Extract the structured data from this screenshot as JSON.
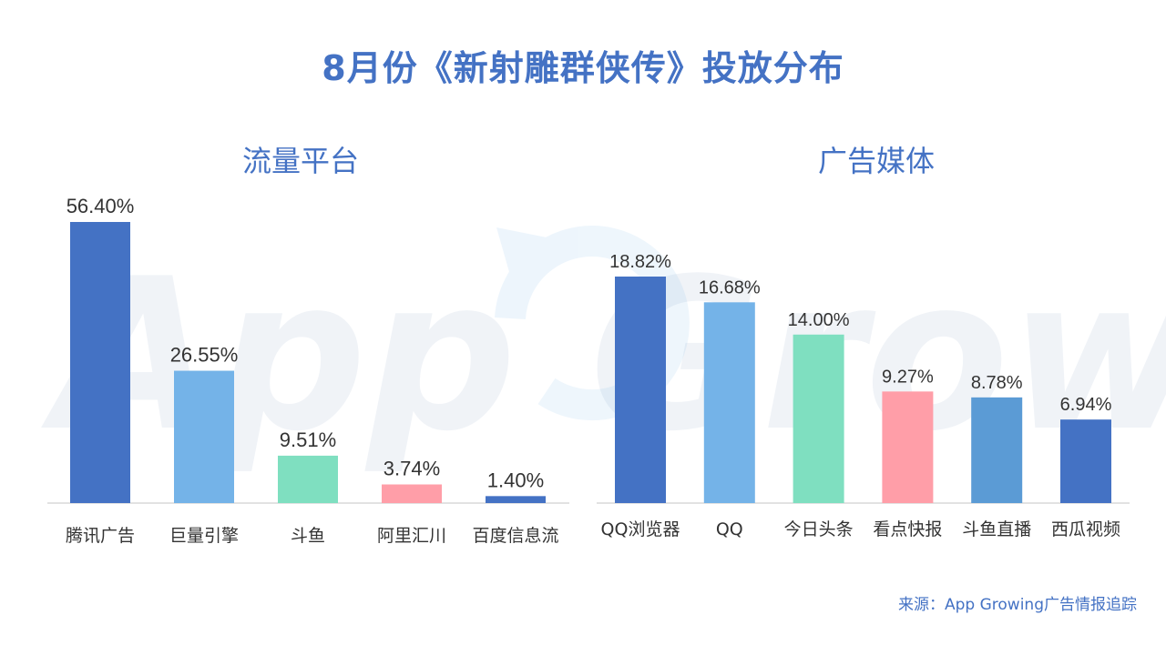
{
  "title": "8月份《新射雕群侠传》投放分布",
  "source": "来源：App Growing广告情报追踪",
  "watermark": "App Growing",
  "colors": {
    "blue_dark": "#4472c4",
    "blue_light": "#74b3e8",
    "mint": "#7fdfc0",
    "pink": "#ff9ea8",
    "blue_mid": "#5b9bd5",
    "axis": "#d9d9d9"
  },
  "chart_data": [
    {
      "type": "bar",
      "title": "流量平台",
      "categories": [
        "腾讯广告",
        "巨量引擎",
        "斗鱼",
        "阿里汇川",
        "百度信息流"
      ],
      "values": [
        56.4,
        26.55,
        9.51,
        3.74,
        1.4
      ],
      "labels": [
        "56.40%",
        "26.55%",
        "9.51%",
        "3.74%",
        "1.40%"
      ],
      "bar_colors": [
        "#4472c4",
        "#74b3e8",
        "#7fdfc0",
        "#ff9ea8",
        "#4472c4"
      ],
      "ylim": [
        0,
        56.4
      ],
      "grid": false,
      "legend": "none"
    },
    {
      "type": "bar",
      "title": "广告媒体",
      "categories": [
        "QQ浏览器",
        "QQ",
        "今日头条",
        "看点快报",
        "斗鱼直播",
        "西瓜视频"
      ],
      "values": [
        18.82,
        16.68,
        14.0,
        9.27,
        8.78,
        6.94
      ],
      "labels": [
        "18.82%",
        "16.68%",
        "14.00%",
        "9.27%",
        "8.78%",
        "6.94%"
      ],
      "bar_colors": [
        "#4472c4",
        "#74b3e8",
        "#7fdfc0",
        "#ff9ea8",
        "#5b9bd5",
        "#4472c4"
      ],
      "ylim": [
        0,
        18.82
      ],
      "grid": false,
      "legend": "none"
    }
  ]
}
